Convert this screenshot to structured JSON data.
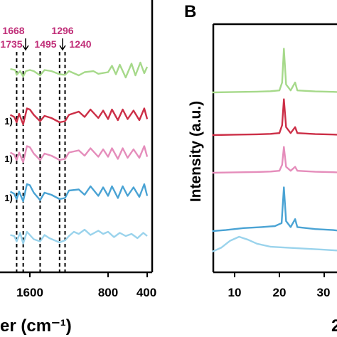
{
  "panel_a": {
    "series_colors": [
      "#a6d98a",
      "#cc2f47",
      "#e58dbb",
      "#4aa3d4",
      "#9ad3ec"
    ],
    "series_label_fragments": [
      "1)",
      "1)",
      "1)"
    ],
    "peak_marks": [
      "1735",
      "1668",
      "1495",
      "1296",
      "1240"
    ],
    "peak_label_color": "#c02e78",
    "x_tick_labels": [
      "1600",
      "800",
      "400"
    ],
    "x_axis_label_fragment": "er (cm⁻¹)"
  },
  "panel_b": {
    "panel_letter": "B",
    "y_axis_label": "Intensity (a.u.)",
    "x_tick_labels": [
      "10",
      "20",
      "30"
    ],
    "x_axis_label_fragment": "2",
    "series_colors": [
      "#a6d98a",
      "#cc2f47",
      "#e58dbb",
      "#4aa3d4",
      "#9ad3ec"
    ]
  },
  "chart_data": [
    {
      "type": "line",
      "x_unit": "cm-1",
      "x_direction": "descending",
      "peaks": [
        1735,
        1668,
        1495,
        1296,
        1240
      ],
      "x_ticks": [
        1600,
        800,
        400
      ],
      "xlim": [
        1800,
        400
      ],
      "series": [
        {
          "color": "#a6d98a",
          "points": [
            [
              1800,
              0.0
            ],
            [
              1750,
              -0.1
            ],
            [
              1735,
              -0.55
            ],
            [
              1700,
              -0.2
            ],
            [
              1668,
              -0.7
            ],
            [
              1640,
              -0.2
            ],
            [
              1600,
              -0.1
            ],
            [
              1560,
              -0.2
            ],
            [
              1495,
              -0.6
            ],
            [
              1450,
              -0.1
            ],
            [
              1380,
              -0.2
            ],
            [
              1296,
              -0.5
            ],
            [
              1240,
              -0.55
            ],
            [
              1200,
              -0.2
            ],
            [
              1100,
              -0.6
            ],
            [
              1040,
              -0.3
            ],
            [
              950,
              -0.2
            ],
            [
              900,
              -0.45
            ],
            [
              800,
              -0.3
            ],
            [
              760,
              0.3
            ],
            [
              720,
              -0.5
            ],
            [
              680,
              0.4
            ],
            [
              620,
              -0.8
            ],
            [
              560,
              0.5
            ],
            [
              520,
              -0.6
            ],
            [
              470,
              0.6
            ],
            [
              430,
              -0.4
            ],
            [
              400,
              0.2
            ]
          ]
        },
        {
          "color": "#cc2f47",
          "points": [
            [
              1800,
              0.1
            ],
            [
              1760,
              -0.1
            ],
            [
              1735,
              -0.6
            ],
            [
              1710,
              0.2
            ],
            [
              1668,
              -0.8
            ],
            [
              1630,
              0.7
            ],
            [
              1600,
              0.6
            ],
            [
              1560,
              0.1
            ],
            [
              1495,
              -0.5
            ],
            [
              1450,
              0.0
            ],
            [
              1380,
              -0.2
            ],
            [
              1296,
              -0.6
            ],
            [
              1240,
              -0.5
            ],
            [
              1200,
              0.1
            ],
            [
              1100,
              0.4
            ],
            [
              1040,
              -0.1
            ],
            [
              980,
              0.6
            ],
            [
              900,
              -0.2
            ],
            [
              850,
              0.5
            ],
            [
              800,
              -0.3
            ],
            [
              760,
              0.6
            ],
            [
              700,
              -0.4
            ],
            [
              650,
              0.6
            ],
            [
              600,
              -0.3
            ],
            [
              540,
              0.5
            ],
            [
              480,
              -0.4
            ],
            [
              430,
              0.7
            ],
            [
              400,
              -0.3
            ]
          ]
        },
        {
          "color": "#e58dbb",
          "points": [
            [
              1800,
              0.1
            ],
            [
              1760,
              -0.1
            ],
            [
              1735,
              -0.6
            ],
            [
              1710,
              0.1
            ],
            [
              1668,
              -0.8
            ],
            [
              1630,
              0.7
            ],
            [
              1600,
              0.6
            ],
            [
              1560,
              0.0
            ],
            [
              1495,
              -0.6
            ],
            [
              1450,
              0.0
            ],
            [
              1380,
              -0.2
            ],
            [
              1296,
              -0.6
            ],
            [
              1240,
              -0.5
            ],
            [
              1200,
              0.1
            ],
            [
              1100,
              0.3
            ],
            [
              1040,
              -0.2
            ],
            [
              980,
              0.5
            ],
            [
              900,
              -0.3
            ],
            [
              850,
              0.4
            ],
            [
              800,
              -0.3
            ],
            [
              760,
              0.5
            ],
            [
              700,
              -0.5
            ],
            [
              650,
              0.5
            ],
            [
              600,
              -0.4
            ],
            [
              540,
              0.4
            ],
            [
              480,
              -0.4
            ],
            [
              430,
              0.7
            ],
            [
              400,
              -0.3
            ]
          ]
        },
        {
          "color": "#4aa3d4",
          "points": [
            [
              1800,
              0.1
            ],
            [
              1760,
              -0.1
            ],
            [
              1735,
              -0.6
            ],
            [
              1710,
              0.1
            ],
            [
              1668,
              -0.8
            ],
            [
              1630,
              0.8
            ],
            [
              1600,
              0.7
            ],
            [
              1560,
              0.0
            ],
            [
              1495,
              -0.7
            ],
            [
              1450,
              0.0
            ],
            [
              1380,
              -0.2
            ],
            [
              1296,
              -0.6
            ],
            [
              1240,
              -0.5
            ],
            [
              1200,
              0.2
            ],
            [
              1100,
              0.3
            ],
            [
              1040,
              -0.2
            ],
            [
              980,
              0.6
            ],
            [
              900,
              -0.3
            ],
            [
              850,
              0.5
            ],
            [
              800,
              -0.3
            ],
            [
              760,
              0.6
            ],
            [
              700,
              -0.5
            ],
            [
              650,
              0.6
            ],
            [
              600,
              -0.3
            ],
            [
              540,
              0.5
            ],
            [
              480,
              -0.4
            ],
            [
              430,
              0.8
            ],
            [
              400,
              -0.3
            ]
          ]
        },
        {
          "color": "#9ad3ec",
          "points": [
            [
              1800,
              0.1
            ],
            [
              1760,
              0.0
            ],
            [
              1735,
              -0.5
            ],
            [
              1700,
              0.3
            ],
            [
              1668,
              -0.7
            ],
            [
              1630,
              0.4
            ],
            [
              1600,
              0.1
            ],
            [
              1560,
              -0.3
            ],
            [
              1495,
              -0.5
            ],
            [
              1450,
              0.1
            ],
            [
              1400,
              -0.2
            ],
            [
              1296,
              -0.6
            ],
            [
              1240,
              -0.4
            ],
            [
              1200,
              0.0
            ],
            [
              1150,
              0.4
            ],
            [
              1100,
              0.2
            ],
            [
              1040,
              0.6
            ],
            [
              980,
              0.1
            ],
            [
              900,
              0.5
            ],
            [
              850,
              0.2
            ],
            [
              800,
              0.4
            ],
            [
              740,
              -0.1
            ],
            [
              680,
              0.3
            ],
            [
              620,
              0.0
            ],
            [
              560,
              0.2
            ],
            [
              500,
              -0.2
            ],
            [
              440,
              0.3
            ],
            [
              400,
              0.0
            ]
          ]
        }
      ]
    },
    {
      "type": "line",
      "y_label": "Intensity (a.u.)",
      "x_ticks": [
        10,
        20,
        30
      ],
      "xlim": [
        5,
        38
      ],
      "series": [
        {
          "color": "#a6d98a",
          "points": [
            [
              5,
              0.0
            ],
            [
              10,
              0.02
            ],
            [
              15,
              0.04
            ],
            [
              18,
              0.06
            ],
            [
              20,
              0.1
            ],
            [
              20.6,
              0.5
            ],
            [
              21,
              2.2
            ],
            [
              21.5,
              0.4
            ],
            [
              22.5,
              0.1
            ],
            [
              23.5,
              0.5
            ],
            [
              24,
              0.1
            ],
            [
              28,
              0.05
            ],
            [
              32,
              0.03
            ],
            [
              38,
              0.02
            ]
          ]
        },
        {
          "color": "#cc2f47",
          "points": [
            [
              5,
              0.0
            ],
            [
              10,
              0.02
            ],
            [
              15,
              0.04
            ],
            [
              18,
              0.06
            ],
            [
              20,
              0.1
            ],
            [
              20.6,
              0.5
            ],
            [
              21,
              1.8
            ],
            [
              21.5,
              0.4
            ],
            [
              22.5,
              0.1
            ],
            [
              23.5,
              0.4
            ],
            [
              24,
              0.1
            ],
            [
              28,
              0.05
            ],
            [
              32,
              0.03
            ],
            [
              38,
              0.02
            ]
          ]
        },
        {
          "color": "#e58dbb",
          "points": [
            [
              5,
              0.0
            ],
            [
              10,
              0.02
            ],
            [
              15,
              0.04
            ],
            [
              18,
              0.06
            ],
            [
              20,
              0.1
            ],
            [
              20.6,
              0.4
            ],
            [
              21,
              1.3
            ],
            [
              21.5,
              0.3
            ],
            [
              22.5,
              0.1
            ],
            [
              23.5,
              0.3
            ],
            [
              24,
              0.1
            ],
            [
              28,
              0.05
            ],
            [
              32,
              0.03
            ],
            [
              38,
              0.02
            ]
          ]
        },
        {
          "color": "#4aa3d4",
          "points": [
            [
              5,
              0.0
            ],
            [
              8,
              0.05
            ],
            [
              12,
              0.15
            ],
            [
              16,
              0.2
            ],
            [
              19,
              0.25
            ],
            [
              20.5,
              0.4
            ],
            [
              21,
              2.2
            ],
            [
              21.5,
              0.5
            ],
            [
              22.5,
              0.2
            ],
            [
              23.5,
              0.6
            ],
            [
              24,
              0.2
            ],
            [
              28,
              0.1
            ],
            [
              32,
              0.05
            ],
            [
              38,
              0.03
            ]
          ]
        },
        {
          "color": "#9ad3ec",
          "points": [
            [
              5,
              0.0
            ],
            [
              7,
              0.2
            ],
            [
              9,
              0.55
            ],
            [
              11,
              0.75
            ],
            [
              13,
              0.6
            ],
            [
              15,
              0.4
            ],
            [
              18,
              0.25
            ],
            [
              22,
              0.2
            ],
            [
              26,
              0.15
            ],
            [
              30,
              0.1
            ],
            [
              34,
              0.06
            ],
            [
              38,
              0.04
            ]
          ]
        }
      ]
    }
  ]
}
